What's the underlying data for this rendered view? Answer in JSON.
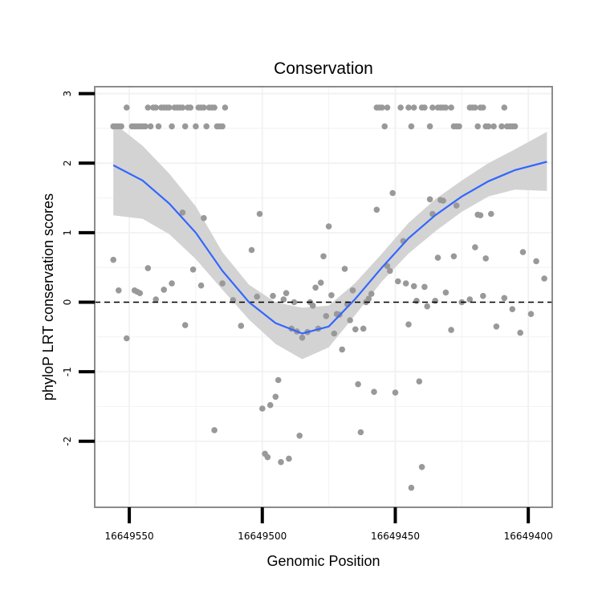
{
  "chart_data": {
    "type": "scatter",
    "title": "Conservation",
    "xlabel": "Genomic Position",
    "ylabel": "phyloP LRT conservation scores",
    "x_reversed": true,
    "xlim": [
      16649563,
      16649391
    ],
    "ylim": [
      -2.95,
      3.1
    ],
    "x_ticks": [
      16649550,
      16649500,
      16649450,
      16649400
    ],
    "x_tick_labels": [
      "16649550",
      "16649500",
      "16649450",
      "16649400"
    ],
    "y_ticks": [
      -2,
      -1,
      0,
      1,
      2,
      3
    ],
    "y_tick_labels": [
      "-2",
      "-1",
      "0",
      "1",
      "2",
      "3"
    ],
    "reference_line": {
      "y": 0,
      "style": "dashed"
    },
    "grid": true,
    "legend": "none",
    "colors": {
      "points": "#999999",
      "smooth": "#3366ff",
      "ribbon": "#d3d3d3",
      "panel_border": "#7f7f7f",
      "grid": "#f2f2f2"
    },
    "smooth": {
      "x": [
        16649556,
        16649545,
        16649535,
        16649525,
        16649515,
        16649505,
        16649495,
        16649485,
        16649475,
        16649465,
        16649455,
        16649445,
        16649435,
        16649425,
        16649415,
        16649405,
        16649393
      ],
      "y": [
        1.97,
        1.75,
        1.42,
        1.0,
        0.45,
        0.0,
        -0.3,
        -0.45,
        -0.35,
        0.05,
        0.5,
        0.92,
        1.25,
        1.52,
        1.74,
        1.9,
        2.02
      ],
      "lower": [
        1.25,
        1.2,
        0.98,
        0.62,
        0.18,
        -0.25,
        -0.6,
        -0.82,
        -0.65,
        -0.18,
        0.3,
        0.7,
        1.02,
        1.3,
        1.52,
        1.62,
        1.6
      ],
      "upper": [
        2.58,
        2.25,
        1.85,
        1.38,
        0.72,
        0.25,
        0.0,
        -0.08,
        -0.05,
        0.28,
        0.7,
        1.14,
        1.48,
        1.75,
        2.0,
        2.2,
        2.45
      ]
    },
    "points": [
      [
        16649556,
        2.53
      ],
      [
        16649555,
        2.53
      ],
      [
        16649554,
        2.53
      ],
      [
        16649553,
        2.53
      ],
      [
        16649551,
        2.8
      ],
      [
        16649549,
        2.53
      ],
      [
        16649548,
        2.53
      ],
      [
        16649547,
        2.53
      ],
      [
        16649546,
        2.53
      ],
      [
        16649545,
        2.53
      ],
      [
        16649544,
        2.53
      ],
      [
        16649543,
        2.8
      ],
      [
        16649542,
        2.53
      ],
      [
        16649541,
        2.8
      ],
      [
        16649540,
        2.8
      ],
      [
        16649539,
        2.53
      ],
      [
        16649538,
        2.8
      ],
      [
        16649537,
        2.8
      ],
      [
        16649536,
        2.8
      ],
      [
        16649535,
        2.8
      ],
      [
        16649534,
        2.53
      ],
      [
        16649533,
        2.8
      ],
      [
        16649532,
        2.8
      ],
      [
        16649531,
        2.8
      ],
      [
        16649530,
        2.8
      ],
      [
        16649529,
        2.53
      ],
      [
        16649528,
        2.8
      ],
      [
        16649527,
        2.8
      ],
      [
        16649525,
        2.53
      ],
      [
        16649524,
        2.8
      ],
      [
        16649523,
        2.8
      ],
      [
        16649522,
        2.8
      ],
      [
        16649521,
        2.53
      ],
      [
        16649520,
        2.8
      ],
      [
        16649519,
        2.8
      ],
      [
        16649518,
        2.8
      ],
      [
        16649517,
        2.53
      ],
      [
        16649516,
        2.53
      ],
      [
        16649515,
        2.53
      ],
      [
        16649514,
        2.8
      ],
      [
        16649457,
        2.8
      ],
      [
        16649456,
        2.8
      ],
      [
        16649455,
        2.8
      ],
      [
        16649454,
        2.53
      ],
      [
        16649453,
        2.8
      ],
      [
        16649448,
        2.8
      ],
      [
        16649445,
        2.8
      ],
      [
        16649444,
        2.53
      ],
      [
        16649443,
        2.8
      ],
      [
        16649440,
        2.8
      ],
      [
        16649439,
        2.8
      ],
      [
        16649437,
        2.53
      ],
      [
        16649436,
        2.8
      ],
      [
        16649434,
        2.8
      ],
      [
        16649433,
        2.8
      ],
      [
        16649432,
        2.8
      ],
      [
        16649431,
        2.8
      ],
      [
        16649429,
        2.8
      ],
      [
        16649428,
        2.53
      ],
      [
        16649427,
        2.53
      ],
      [
        16649426,
        2.53
      ],
      [
        16649422,
        2.8
      ],
      [
        16649421,
        2.8
      ],
      [
        16649420,
        2.8
      ],
      [
        16649419,
        2.53
      ],
      [
        16649418,
        2.8
      ],
      [
        16649417,
        2.8
      ],
      [
        16649416,
        2.53
      ],
      [
        16649415,
        2.53
      ],
      [
        16649413,
        2.53
      ],
      [
        16649410,
        2.53
      ],
      [
        16649409,
        2.8
      ],
      [
        16649408,
        2.53
      ],
      [
        16649407,
        2.53
      ],
      [
        16649406,
        2.53
      ],
      [
        16649405,
        2.53
      ],
      [
        16649556,
        0.61
      ],
      [
        16649554,
        0.17
      ],
      [
        16649551,
        -0.52
      ],
      [
        16649548,
        0.17
      ],
      [
        16649547,
        0.15
      ],
      [
        16649546,
        0.13
      ],
      [
        16649543,
        0.49
      ],
      [
        16649540,
        0.04
      ],
      [
        16649537,
        0.18
      ],
      [
        16649534,
        0.27
      ],
      [
        16649530,
        1.29
      ],
      [
        16649529,
        -0.33
      ],
      [
        16649526,
        0.47
      ],
      [
        16649523,
        0.24
      ],
      [
        16649522,
        1.21
      ],
      [
        16649518,
        -1.84
      ],
      [
        16649515,
        0.27
      ],
      [
        16649511,
        0.03
      ],
      [
        16649508,
        -0.34
      ],
      [
        16649504,
        0.75
      ],
      [
        16649502,
        0.08
      ],
      [
        16649501,
        1.27
      ],
      [
        16649500,
        -1.53
      ],
      [
        16649499,
        -2.18
      ],
      [
        16649498,
        -2.23
      ],
      [
        16649497,
        -1.48
      ],
      [
        16649496,
        0.09
      ],
      [
        16649495,
        -1.36
      ],
      [
        16649494,
        -1.12
      ],
      [
        16649493,
        -2.3
      ],
      [
        16649492,
        0.04
      ],
      [
        16649491,
        0.13
      ],
      [
        16649490,
        -2.25
      ],
      [
        16649489,
        -0.38
      ],
      [
        16649488,
        0.0
      ],
      [
        16649487,
        -0.42
      ],
      [
        16649486,
        -1.92
      ],
      [
        16649485,
        -0.51
      ],
      [
        16649483,
        -0.43
      ],
      [
        16649482,
        0.0
      ],
      [
        16649481,
        -0.05
      ],
      [
        16649480,
        0.21
      ],
      [
        16649479,
        -0.38
      ],
      [
        16649478,
        0.28
      ],
      [
        16649477,
        0.66
      ],
      [
        16649476,
        -0.2
      ],
      [
        16649475,
        1.09
      ],
      [
        16649474,
        0.1
      ],
      [
        16649473,
        -0.45
      ],
      [
        16649472,
        -0.17
      ],
      [
        16649471,
        -0.18
      ],
      [
        16649470,
        -0.68
      ],
      [
        16649469,
        0.48
      ],
      [
        16649468,
        -0.03
      ],
      [
        16649467,
        -0.26
      ],
      [
        16649466,
        0.17
      ],
      [
        16649465,
        -0.39
      ],
      [
        16649464,
        -1.18
      ],
      [
        16649463,
        -1.87
      ],
      [
        16649462,
        -0.38
      ],
      [
        16649461,
        0.0
      ],
      [
        16649460,
        0.05
      ],
      [
        16649459,
        0.12
      ],
      [
        16649458,
        -1.29
      ],
      [
        16649457,
        1.33
      ],
      [
        16649453,
        0.52
      ],
      [
        16649452,
        0.45
      ],
      [
        16649451,
        1.57
      ],
      [
        16649450,
        -1.3
      ],
      [
        16649449,
        0.3
      ],
      [
        16649447,
        0.88
      ],
      [
        16649446,
        0.27
      ],
      [
        16649445,
        -0.32
      ],
      [
        16649444,
        -2.67
      ],
      [
        16649443,
        0.23
      ],
      [
        16649442,
        0.02
      ],
      [
        16649441,
        -1.14
      ],
      [
        16649440,
        -2.37
      ],
      [
        16649439,
        0.22
      ],
      [
        16649438,
        -0.06
      ],
      [
        16649437,
        1.48
      ],
      [
        16649436,
        1.27
      ],
      [
        16649435,
        0.02
      ],
      [
        16649434,
        0.64
      ],
      [
        16649433,
        1.47
      ],
      [
        16649432,
        1.46
      ],
      [
        16649431,
        0.14
      ],
      [
        16649429,
        -0.4
      ],
      [
        16649428,
        0.66
      ],
      [
        16649427,
        1.39
      ],
      [
        16649425,
        0.0
      ],
      [
        16649422,
        0.04
      ],
      [
        16649420,
        0.79
      ],
      [
        16649419,
        1.26
      ],
      [
        16649418,
        1.25
      ],
      [
        16649417,
        0.09
      ],
      [
        16649416,
        0.63
      ],
      [
        16649414,
        1.27
      ],
      [
        16649412,
        -0.35
      ],
      [
        16649409,
        0.06
      ],
      [
        16649406,
        -0.1
      ],
      [
        16649403,
        -0.44
      ],
      [
        16649402,
        0.72
      ],
      [
        16649399,
        -0.17
      ],
      [
        16649397,
        0.59
      ],
      [
        16649394,
        0.34
      ]
    ]
  }
}
